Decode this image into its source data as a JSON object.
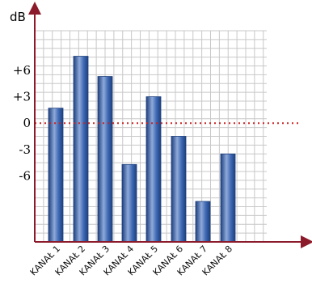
{
  "chart_data": {
    "type": "bar",
    "ylabel": "dB",
    "categories": [
      "KANAŁ 1",
      "KANAŁ 2",
      "KANAŁ 3",
      "KANAŁ 4",
      "KANAŁ 5",
      "KANAŁ 6",
      "KANAŁ 7",
      "KANAŁ 8"
    ],
    "values": [
      1.7,
      7.6,
      5.3,
      -4.7,
      3.0,
      -1.5,
      -8.9,
      -3.5
    ],
    "yticks": [
      {
        "value": 6,
        "label": "+6"
      },
      {
        "value": 3,
        "label": "+3"
      },
      {
        "value": 0,
        "label": "0"
      },
      {
        "value": -3,
        "label": "-3"
      },
      {
        "value": -6,
        "label": "-6"
      }
    ],
    "ylim": [
      -13.5,
      10.5
    ],
    "grid": true,
    "reference_line": {
      "value": 0,
      "style": "dotted",
      "color": "#cc2222"
    },
    "colors": {
      "axis": "#8b1a2a",
      "grid": "#c8c8c8",
      "bar_dark": "#1d3f7d",
      "bar_light": "#8fa9d9",
      "bar_mid": "#3e69b4"
    }
  }
}
